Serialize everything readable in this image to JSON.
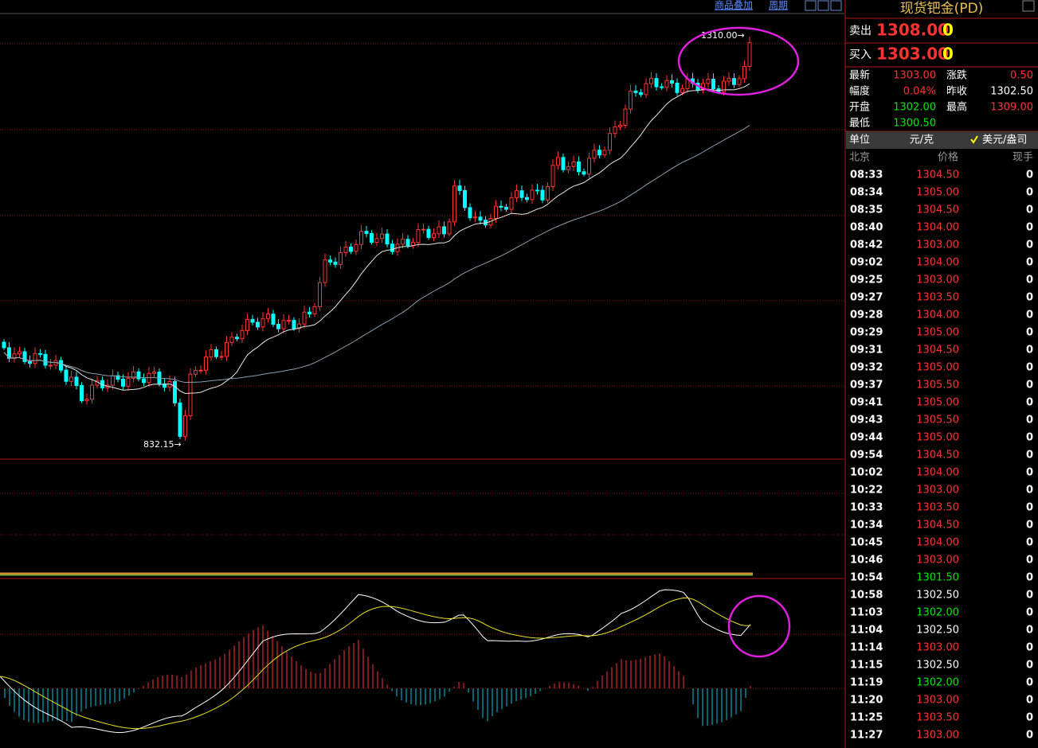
{
  "toolbar": {
    "overlay": "商品叠加",
    "period": "周期"
  },
  "chart": {
    "high_label": "1310.00→",
    "low_label": "832.15→"
  },
  "quote": {
    "title": "现货钯金(PD)",
    "sell": {
      "label": "卖出",
      "price": "1308.00",
      "volume": "0"
    },
    "buy": {
      "label": "买入",
      "price": "1303.00",
      "volume": "0"
    }
  },
  "stats": [
    [
      {
        "label": "最新",
        "value": "1303.00",
        "color": "#ff3232"
      },
      {
        "label": "涨跌",
        "value": "0.50",
        "color": "#ff3232"
      }
    ],
    [
      {
        "label": "幅度",
        "value": "0.04%",
        "color": "#ff3232"
      },
      {
        "label": "昨收",
        "value": "1302.50",
        "color": "#ffffff"
      }
    ],
    [
      {
        "label": "开盘",
        "value": "1302.00",
        "color": "#00e600"
      },
      {
        "label": "最高",
        "value": "1309.00",
        "color": "#ff3232"
      }
    ],
    [
      {
        "label": "最低",
        "value": "1300.50",
        "color": "#00e600"
      }
    ]
  ],
  "unit": {
    "label": "单位",
    "value": "元/克",
    "option": "美元/盎司"
  },
  "ticks": {
    "columns": [
      "北京",
      "价格",
      "现手"
    ],
    "rows": [
      [
        "08:33",
        "1304.50",
        "0"
      ],
      [
        "08:34",
        "1305.00",
        "0"
      ],
      [
        "08:35",
        "1304.50",
        "0"
      ],
      [
        "08:40",
        "1304.00",
        "0"
      ],
      [
        "08:42",
        "1303.00",
        "0"
      ],
      [
        "09:02",
        "1304.00",
        "0"
      ],
      [
        "09:25",
        "1303.00",
        "0"
      ],
      [
        "09:27",
        "1303.50",
        "0"
      ],
      [
        "09:28",
        "1304.00",
        "0"
      ],
      [
        "09:29",
        "1305.00",
        "0"
      ],
      [
        "09:31",
        "1304.50",
        "0"
      ],
      [
        "09:32",
        "1305.00",
        "0"
      ],
      [
        "09:37",
        "1305.50",
        "0"
      ],
      [
        "09:41",
        "1305.00",
        "0"
      ],
      [
        "09:43",
        "1305.50",
        "0"
      ],
      [
        "09:44",
        "1305.00",
        "0"
      ],
      [
        "09:54",
        "1304.50",
        "0"
      ],
      [
        "10:02",
        "1304.00",
        "0"
      ],
      [
        "10:22",
        "1303.00",
        "0"
      ],
      [
        "10:33",
        "1303.50",
        "0"
      ],
      [
        "10:34",
        "1304.50",
        "0"
      ],
      [
        "10:45",
        "1304.00",
        "0"
      ],
      [
        "10:46",
        "1303.00",
        "0"
      ],
      [
        "10:54",
        "1301.50",
        "0"
      ],
      [
        "10:58",
        "1302.50",
        "0"
      ],
      [
        "11:03",
        "1302.00",
        "0"
      ],
      [
        "11:04",
        "1302.50",
        "0"
      ],
      [
        "11:14",
        "1303.00",
        "0"
      ],
      [
        "11:15",
        "1302.50",
        "0"
      ],
      [
        "11:19",
        "1302.00",
        "0"
      ],
      [
        "11:20",
        "1303.00",
        "0"
      ],
      [
        "11:25",
        "1303.50",
        "0"
      ],
      [
        "11:27",
        "1303.00",
        "0"
      ]
    ]
  }
}
